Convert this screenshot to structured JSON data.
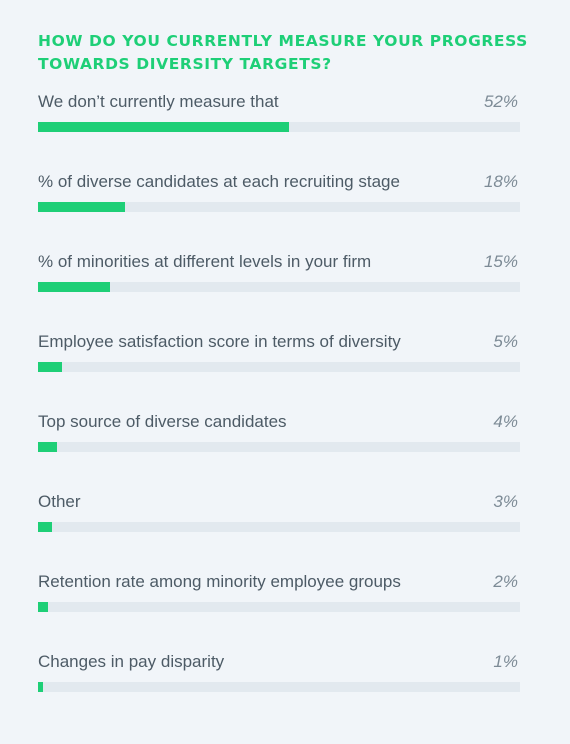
{
  "chart_data": {
    "type": "bar",
    "orientation": "horizontal",
    "title": "How do you currently measure your progress towards diversity targets?",
    "categories": [
      "We don’t currently measure that",
      "% of diverse candidates at each recruiting stage",
      "% of minorities at different levels in your firm",
      "Employee satisfaction score in terms of diversity",
      "Top source of diverse candidates",
      "Other",
      "Retention rate among minority employee groups",
      "Changes in pay disparity"
    ],
    "values": [
      52,
      18,
      15,
      5,
      4,
      3,
      2,
      1
    ],
    "value_labels": [
      "52%",
      "18%",
      "15%",
      "5%",
      "4%",
      "3%",
      "2%",
      "1%"
    ],
    "xlim": [
      0,
      100
    ],
    "unit": "%",
    "grid": false,
    "legend": "none",
    "colors": {
      "bar": "#1ecf77",
      "track": "#e2e9ef",
      "title": "#1ecf77",
      "label": "#4d5b66",
      "value": "#7d8b96",
      "background": "#f1f5f9"
    }
  }
}
